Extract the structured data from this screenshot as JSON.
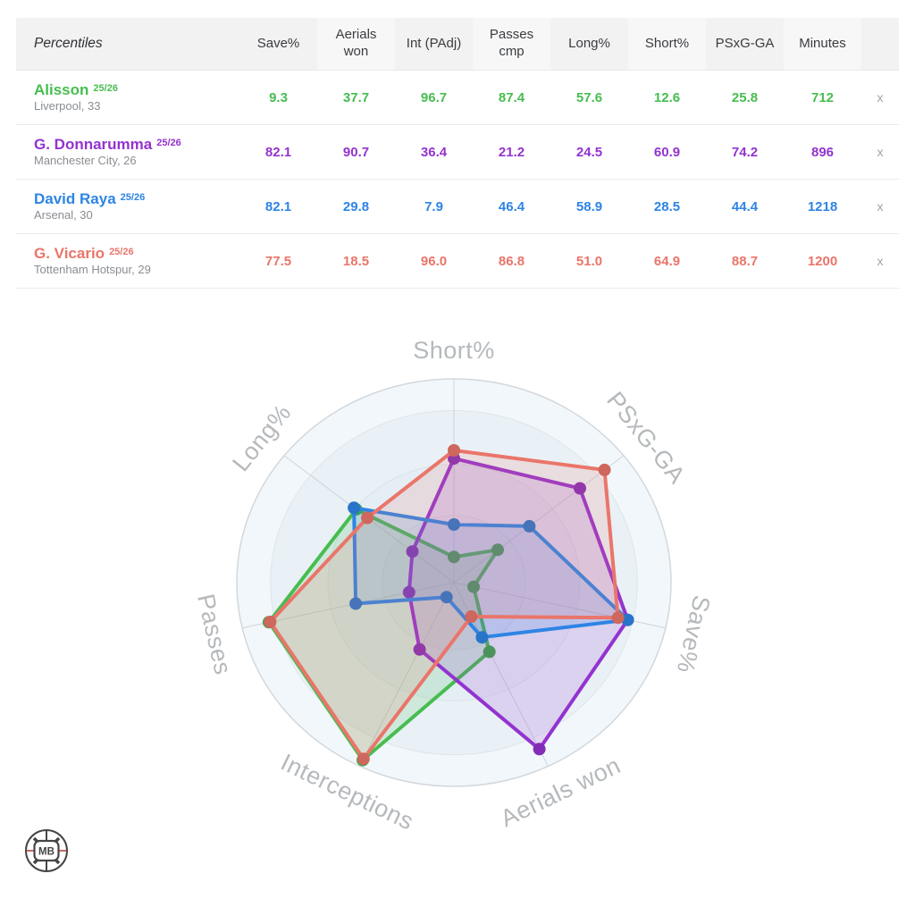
{
  "table": {
    "corner_label": "Percentiles",
    "columns": [
      "Save%",
      "Aerials\nwon",
      "Int (PAdj)",
      "Passes\ncmp",
      "Long%",
      "Short%",
      "PSxG-GA",
      "Minutes"
    ],
    "remove_label": "x",
    "rows": [
      {
        "name": "Alisson",
        "season": "25/26",
        "subtitle": "Liverpool, 33",
        "color": "#47bd50",
        "values": [
          "9.3",
          "37.7",
          "96.7",
          "87.4",
          "57.6",
          "12.6",
          "25.8",
          "712"
        ]
      },
      {
        "name": "G. Donnarumma",
        "season": "25/26",
        "subtitle": "Manchester City, 26",
        "color": "#9333cf",
        "values": [
          "82.1",
          "90.7",
          "36.4",
          "21.2",
          "24.5",
          "60.9",
          "74.2",
          "896"
        ]
      },
      {
        "name": "David Raya",
        "season": "25/26",
        "subtitle": "Arsenal, 30",
        "color": "#2e84e4",
        "values": [
          "82.1",
          "29.8",
          "7.9",
          "46.4",
          "58.9",
          "28.5",
          "44.4",
          "1218"
        ]
      },
      {
        "name": "G. Vicario",
        "season": "25/26",
        "subtitle": "Tottenham Hotspur, 29",
        "color": "#ea756a",
        "values": [
          "77.5",
          "18.5",
          "96.0",
          "86.8",
          "51.0",
          "64.9",
          "88.7",
          "1200"
        ]
      }
    ]
  },
  "chart_data": {
    "type": "radar",
    "axes": [
      "Short%",
      "PSxG-GA",
      "Save%",
      "Aerials won",
      "Interceptions",
      "Passes",
      "Long%"
    ],
    "range": [
      0,
      100
    ],
    "grid": "circular",
    "legend": false,
    "series": [
      {
        "name": "Alisson 25/26",
        "color": "#47bd50",
        "values": [
          12.6,
          25.8,
          9.3,
          37.7,
          96.7,
          87.4,
          57.6
        ]
      },
      {
        "name": "G. Donnarumma 25/26",
        "color": "#9333cf",
        "values": [
          60.9,
          74.2,
          82.1,
          90.7,
          36.4,
          21.2,
          24.5
        ]
      },
      {
        "name": "David Raya 25/26",
        "color": "#2e84e4",
        "values": [
          28.5,
          44.4,
          82.1,
          29.8,
          7.9,
          46.4,
          58.9
        ]
      },
      {
        "name": "G. Vicario 25/26",
        "color": "#ea756a",
        "values": [
          64.9,
          88.7,
          77.5,
          18.5,
          96.0,
          86.8,
          51.0
        ]
      }
    ]
  },
  "logo": {
    "text": "MB"
  }
}
